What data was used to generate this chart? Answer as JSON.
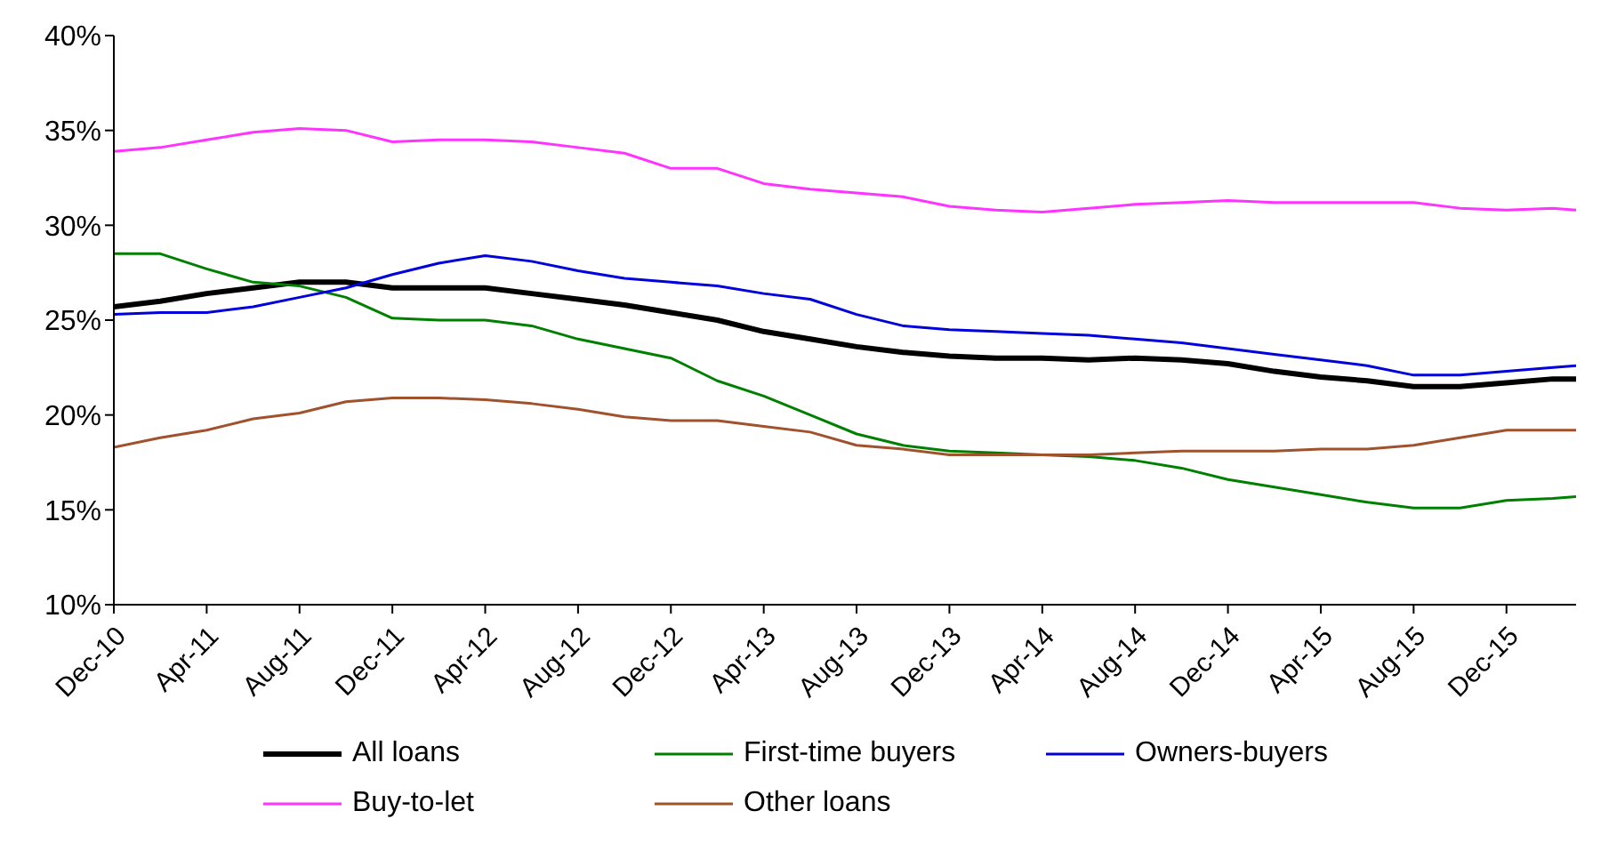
{
  "chart_data": {
    "type": "line",
    "x": [
      "2010-12",
      "2011-02",
      "2011-04",
      "2011-06",
      "2011-08",
      "2011-10",
      "2011-12",
      "2012-02",
      "2012-04",
      "2012-06",
      "2012-08",
      "2012-10",
      "2012-12",
      "2013-02",
      "2013-04",
      "2013-06",
      "2013-08",
      "2013-10",
      "2013-12",
      "2014-02",
      "2014-04",
      "2014-06",
      "2014-08",
      "2014-10",
      "2014-12",
      "2015-02",
      "2015-04",
      "2015-06",
      "2015-08",
      "2015-10",
      "2015-12",
      "2016-02",
      "2016-03"
    ],
    "series": [
      {
        "name": "All loans",
        "color": "#000000",
        "values": [
          25.7,
          26.0,
          26.4,
          26.7,
          27.0,
          27.0,
          26.7,
          26.7,
          26.7,
          26.4,
          26.1,
          25.8,
          25.4,
          25.0,
          24.4,
          24.0,
          23.6,
          23.3,
          23.1,
          23.0,
          23.0,
          22.9,
          23.0,
          22.9,
          22.7,
          22.3,
          22.0,
          21.8,
          21.5,
          21.5,
          21.7,
          21.9,
          21.9
        ]
      },
      {
        "name": "First-time buyers",
        "color": "#008000",
        "values": [
          28.5,
          28.5,
          27.7,
          27.0,
          26.8,
          26.2,
          25.1,
          25.0,
          25.0,
          24.7,
          24.0,
          23.5,
          23.0,
          21.8,
          21.0,
          20.0,
          19.0,
          18.4,
          18.1,
          18.0,
          17.9,
          17.8,
          17.6,
          17.2,
          16.6,
          16.2,
          15.8,
          15.4,
          15.1,
          15.1,
          15.5,
          15.6,
          15.7
        ]
      },
      {
        "name": "Owners-buyers",
        "color": "#0000dd",
        "values": [
          25.3,
          25.4,
          25.4,
          25.7,
          26.2,
          26.7,
          27.4,
          28.0,
          28.4,
          28.1,
          27.6,
          27.2,
          27.0,
          26.8,
          26.4,
          26.1,
          25.3,
          24.7,
          24.5,
          24.4,
          24.3,
          24.2,
          24.0,
          23.8,
          23.5,
          23.2,
          22.9,
          22.6,
          22.1,
          22.1,
          22.3,
          22.5,
          22.6
        ]
      },
      {
        "name": "Buy-to-let",
        "color": "#ff33ff",
        "values": [
          33.9,
          34.1,
          34.5,
          34.9,
          35.1,
          35.0,
          34.4,
          34.5,
          34.5,
          34.4,
          34.1,
          33.8,
          33.0,
          33.0,
          32.2,
          31.9,
          31.7,
          31.5,
          31.0,
          30.8,
          30.7,
          30.9,
          31.1,
          31.2,
          31.3,
          31.2,
          31.2,
          31.2,
          31.2,
          30.9,
          30.8,
          30.9,
          30.8
        ]
      },
      {
        "name": "Other loans",
        "color": "#a0522d",
        "values": [
          18.3,
          18.8,
          19.2,
          19.8,
          20.1,
          20.7,
          20.9,
          20.9,
          20.8,
          20.6,
          20.3,
          19.9,
          19.7,
          19.7,
          19.4,
          19.1,
          18.4,
          18.2,
          17.9,
          17.9,
          17.9,
          17.9,
          18.0,
          18.1,
          18.1,
          18.1,
          18.2,
          18.2,
          18.4,
          18.8,
          19.2,
          19.2,
          19.2
        ]
      }
    ],
    "xlim": [
      "2010-12",
      "2016-03"
    ],
    "xticks": [
      {
        "value": "2010-12",
        "label": "Dec-10"
      },
      {
        "value": "2011-04",
        "label": "Apr-11"
      },
      {
        "value": "2011-08",
        "label": "Aug-11"
      },
      {
        "value": "2011-12",
        "label": "Dec-11"
      },
      {
        "value": "2012-04",
        "label": "Apr-12"
      },
      {
        "value": "2012-08",
        "label": "Aug-12"
      },
      {
        "value": "2012-12",
        "label": "Dec-12"
      },
      {
        "value": "2013-04",
        "label": "Apr-13"
      },
      {
        "value": "2013-08",
        "label": "Aug-13"
      },
      {
        "value": "2013-12",
        "label": "Dec-13"
      },
      {
        "value": "2014-04",
        "label": "Apr-14"
      },
      {
        "value": "2014-08",
        "label": "Aug-14"
      },
      {
        "value": "2014-12",
        "label": "Dec-14"
      },
      {
        "value": "2015-04",
        "label": "Apr-15"
      },
      {
        "value": "2015-08",
        "label": "Aug-15"
      },
      {
        "value": "2015-12",
        "label": "Dec-15"
      }
    ],
    "ylim": [
      10,
      40
    ],
    "yticks": [
      {
        "value": 10,
        "label": "10%"
      },
      {
        "value": 15,
        "label": "15%"
      },
      {
        "value": 20,
        "label": "20%"
      },
      {
        "value": 25,
        "label": "25%"
      },
      {
        "value": 30,
        "label": "30%"
      },
      {
        "value": 35,
        "label": "35%"
      },
      {
        "value": 40,
        "label": "40%"
      }
    ],
    "legend": "bottom",
    "marker": "none",
    "line_style": "solid"
  }
}
